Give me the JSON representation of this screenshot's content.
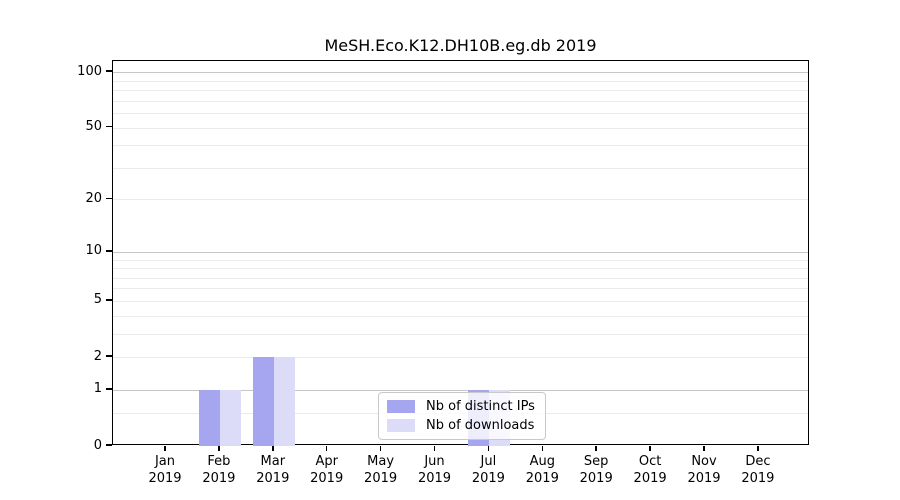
{
  "title": "MeSH.Eco.K12.DH10B.eg.db 2019",
  "legend": {
    "items": [
      {
        "label": "Nb of distinct IPs",
        "color": "#a5a5f0"
      },
      {
        "label": "Nb of downloads",
        "color": "#dcdcf8"
      }
    ]
  },
  "x_axis": {
    "months": [
      "Jan",
      "Feb",
      "Mar",
      "Apr",
      "May",
      "Jun",
      "Jul",
      "Aug",
      "Sep",
      "Oct",
      "Nov",
      "Dec"
    ],
    "year": "2019"
  },
  "y_axis": {
    "tick_labels": [
      "0",
      "1",
      "2",
      "5",
      "10",
      "20",
      "50",
      "100"
    ],
    "tick_values": [
      0,
      1,
      2,
      5,
      10,
      20,
      50,
      100
    ],
    "major_grid_values": [
      1,
      10,
      100
    ],
    "minor_grid_values": [
      0.5,
      2,
      3,
      4,
      5,
      6,
      7,
      8,
      9,
      20,
      30,
      40,
      50,
      60,
      70,
      80,
      90
    ]
  },
  "colors": {
    "distinct_ips": "#a5a5f0",
    "downloads": "#dcdcf8",
    "grid_major": "#c6c6c6",
    "grid_minor": "#ebebeb",
    "axis": "#000000",
    "legend_border": "#c9c9c9",
    "background": "#ffffff"
  },
  "chart_data": {
    "type": "bar",
    "title": "MeSH.Eco.K12.DH10B.eg.db 2019",
    "categories": [
      "Jan 2019",
      "Feb 2019",
      "Mar 2019",
      "Apr 2019",
      "May 2019",
      "Jun 2019",
      "Jul 2019",
      "Aug 2019",
      "Sep 2019",
      "Oct 2019",
      "Nov 2019",
      "Dec 2019"
    ],
    "series": [
      {
        "name": "Nb of distinct IPs",
        "values": [
          0,
          1,
          2,
          0,
          0,
          0,
          1,
          0,
          0,
          0,
          0,
          0
        ]
      },
      {
        "name": "Nb of downloads",
        "values": [
          0,
          1,
          2,
          0,
          0,
          0,
          1,
          0,
          0,
          0,
          0,
          0
        ]
      }
    ],
    "xlabel": "",
    "ylabel": "",
    "yscale": "log1p",
    "ylim": [
      0,
      115
    ],
    "y_ticks": [
      0,
      1,
      2,
      5,
      10,
      20,
      50,
      100
    ],
    "grid": "horizontal-only",
    "legend_position": "bottom-center-inside"
  }
}
